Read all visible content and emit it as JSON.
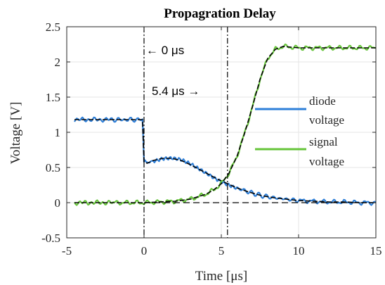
{
  "chart_data": {
    "type": "line",
    "title": "Propagration Delay",
    "xlabel": "Time [μs]",
    "ylabel": "Voltage [V]",
    "xlim": [
      -5,
      15
    ],
    "ylim": [
      -0.5,
      2.5
    ],
    "xticks": [
      "-5",
      "0",
      "5",
      "10",
      "15"
    ],
    "yticks": [
      "-0.5",
      "0",
      "0.5",
      "1",
      "1.5",
      "2",
      "2.5"
    ],
    "grid": true,
    "legend_position": "right",
    "series": [
      {
        "name": "diode voltage",
        "color": "#2e7fd8",
        "x": [
          -4.5,
          -2,
          -0.1,
          0,
          0.2,
          0.6,
          1.2,
          1.8,
          2.4,
          3,
          3.6,
          4.2,
          4.8,
          5.4,
          6,
          6.8,
          7.6,
          8.4,
          9.2,
          10,
          11,
          12,
          13,
          14,
          15
        ],
        "y": [
          1.18,
          1.18,
          1.18,
          0.58,
          0.56,
          0.6,
          0.63,
          0.63,
          0.6,
          0.54,
          0.47,
          0.4,
          0.33,
          0.27,
          0.21,
          0.15,
          0.1,
          0.07,
          0.05,
          0.03,
          0.02,
          0.01,
          0.01,
          0.0,
          0.0
        ]
      },
      {
        "name": "signal voltage",
        "color": "#66c43a",
        "x": [
          -4.5,
          -2,
          0,
          1,
          2,
          3,
          4,
          4.5,
          5,
          5.5,
          6,
          6.5,
          7,
          7.5,
          8,
          8.5,
          9,
          10,
          11,
          12,
          13,
          14,
          15
        ],
        "y": [
          0.0,
          0.0,
          0.0,
          0.01,
          0.02,
          0.05,
          0.12,
          0.18,
          0.27,
          0.42,
          0.65,
          0.98,
          1.35,
          1.75,
          2.05,
          2.18,
          2.22,
          2.2,
          2.2,
          2.2,
          2.2,
          2.2,
          2.2
        ]
      }
    ],
    "annotations": [
      {
        "text": "← 0 μs",
        "x": 0
      },
      {
        "text": "5.4 μs →",
        "x": 5.4
      }
    ]
  }
}
